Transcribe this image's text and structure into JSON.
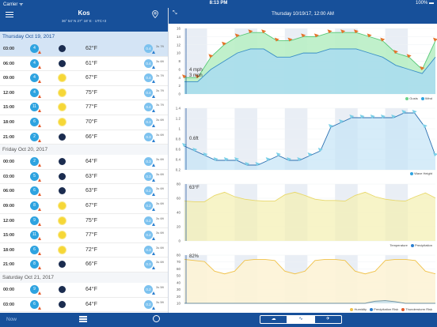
{
  "status": {
    "carrier": "Carrier ᯤ",
    "time": "8:13 PM",
    "battery": "100% ▬"
  },
  "location": {
    "name": "Kos",
    "coords": "36° 54' N 27° 18' E · UTC+3"
  },
  "chart_header": {
    "title": "Thursday 10/19/17, 12:00 AM"
  },
  "days": [
    {
      "label": "Thursday Oct 19, 2017",
      "selected": true,
      "rows": [
        {
          "time": "03:00",
          "wind": "4",
          "icon": "moon",
          "temp": "62°F",
          "wave": "0.4",
          "period": "3s 7ft",
          "selected": true
        },
        {
          "time": "06:00",
          "wind": "4",
          "icon": "moon",
          "temp": "61°F",
          "wave": "0.4",
          "period": "3s 6ft"
        },
        {
          "time": "09:00",
          "wind": "4",
          "icon": "sun",
          "temp": "67°F",
          "wave": "0.4",
          "period": "3s 7ft"
        },
        {
          "time": "12:00",
          "wind": "4",
          "icon": "sun",
          "temp": "75°F",
          "wave": "0.4",
          "period": "3s 7ft"
        },
        {
          "time": "15:00",
          "wind": "11",
          "icon": "sun",
          "temp": "77°F",
          "wave": "0.4",
          "period": "3s 7ft"
        },
        {
          "time": "18:00",
          "wind": "6",
          "icon": "sun",
          "temp": "70°F",
          "wave": "0.3",
          "period": "3s 6ft"
        },
        {
          "time": "21:00",
          "wind": "2",
          "icon": "moon",
          "temp": "66°F",
          "wave": "0.3",
          "period": "3s 6ft"
        }
      ]
    },
    {
      "label": "Friday Oct 20, 2017",
      "rows": [
        {
          "time": "00:00",
          "wind": "2",
          "icon": "moon",
          "temp": "64°F",
          "wave": "0.3",
          "period": "3s 6ft"
        },
        {
          "time": "03:00",
          "wind": "5",
          "icon": "moon",
          "temp": "63°F",
          "wave": "0.3",
          "period": "3s 6ft"
        },
        {
          "time": "06:00",
          "wind": "6",
          "icon": "moon",
          "temp": "63°F",
          "wave": "0.2",
          "period": "3s 6ft"
        },
        {
          "time": "09:00",
          "wind": "8",
          "icon": "sun",
          "temp": "67°F",
          "wave": "0.2",
          "period": "3s 6ft"
        },
        {
          "time": "12:00",
          "wind": "9",
          "icon": "sun",
          "temp": "75°F",
          "wave": "0.2",
          "period": "3s 6ft"
        },
        {
          "time": "15:00",
          "wind": "11",
          "icon": "sun",
          "temp": "77°F",
          "wave": "0.2",
          "period": "3s 6ft"
        },
        {
          "time": "18:00",
          "wind": "6",
          "icon": "sun",
          "temp": "72°F",
          "wave": "0.3",
          "period": "3s 6ft"
        },
        {
          "time": "21:00",
          "wind": "8",
          "icon": "moon",
          "temp": "66°F",
          "wave": "0.3",
          "period": "3s 6ft"
        }
      ]
    },
    {
      "label": "Saturday Oct 21, 2017",
      "rows": [
        {
          "time": "00:00",
          "wind": "9",
          "icon": "moon",
          "temp": "64°F",
          "wave": "0.2",
          "period": "3s 5ft"
        },
        {
          "time": "03:00",
          "wind": "6",
          "icon": "moon",
          "temp": "64°F",
          "wave": "0.2",
          "period": "3s 5ft"
        },
        {
          "time": "06:00",
          "wind": "6",
          "icon": "moon",
          "temp": "63°F",
          "wave": "0.2",
          "period": "3s 5ft"
        }
      ]
    }
  ],
  "charts": {
    "wind": {
      "label1": "4 mph",
      "label2": "3 mph",
      "ticks": [
        "16",
        "14",
        "12",
        "10",
        "8",
        "6",
        "4",
        "2",
        "0"
      ],
      "legend": [
        "Gusts",
        "Wind"
      ]
    },
    "wave": {
      "label": "0.6ft",
      "ticks": [
        "1.4",
        "1.2",
        "1",
        "0.8",
        "0.6",
        "0.4",
        "0.2"
      ],
      "legend": [
        "Wave Height"
      ]
    },
    "temp": {
      "label": "63°F",
      "ticks": [
        "80",
        "60",
        "40",
        "20",
        "0"
      ],
      "legend": [
        "Temperature",
        "Precipitation"
      ]
    },
    "humidity": {
      "label": "82%",
      "ticks": [
        "80",
        "70",
        "60",
        "50",
        "40",
        "30",
        "20",
        "10"
      ],
      "legend": [
        "Humidity",
        "Precipitation Risk",
        "Thunderstorm Risk"
      ]
    }
  },
  "chart_data": [
    {
      "type": "area",
      "title": "",
      "series": [
        {
          "name": "Gusts",
          "values": [
            4,
            4,
            9,
            12,
            14,
            15,
            15,
            13,
            13,
            14,
            14,
            15,
            15,
            15,
            14,
            13,
            10,
            9,
            6,
            13
          ]
        },
        {
          "name": "Wind",
          "values": [
            3,
            3,
            6,
            8,
            10,
            11,
            11,
            9,
            9,
            10,
            10,
            11,
            11,
            11,
            10,
            9,
            7,
            6,
            5,
            9
          ]
        }
      ],
      "ylim": [
        0,
        16
      ]
    },
    {
      "type": "area",
      "title": "",
      "series": [
        {
          "name": "Wave Height",
          "values": [
            0.6,
            0.5,
            0.4,
            0.3,
            0.3,
            0.3,
            0.2,
            0.2,
            0.3,
            0.4,
            0.3,
            0.3,
            0.4,
            0.5,
            1.0,
            1.1,
            1.2,
            1.2,
            1.2,
            1.2,
            1.2,
            1.3,
            1.3,
            1.0,
            0.4
          ]
        }
      ],
      "ylim": [
        0.1,
        1.4
      ]
    },
    {
      "type": "area",
      "title": "",
      "series": [
        {
          "name": "Temperature",
          "values": [
            63,
            62,
            62,
            72,
            77,
            70,
            66,
            64,
            63,
            63,
            73,
            77,
            72,
            66,
            64,
            64,
            63,
            72,
            77,
            70,
            66,
            64,
            63,
            70,
            76,
            68
          ]
        }
      ],
      "ylim": [
        0,
        90
      ]
    },
    {
      "type": "area",
      "title": "",
      "series": [
        {
          "name": "Humidity",
          "values": [
            82,
            80,
            78,
            60,
            55,
            60,
            80,
            82,
            82,
            80,
            60,
            55,
            60,
            80,
            82,
            82,
            80,
            60,
            55,
            60,
            80,
            82,
            82,
            80,
            60,
            55
          ]
        },
        {
          "name": "Precipitation Risk",
          "values": [
            0,
            0,
            0,
            0,
            0,
            0,
            0,
            0,
            0,
            0,
            0,
            0,
            0,
            0,
            0,
            0,
            0,
            0,
            0,
            4,
            5,
            3,
            0,
            0,
            0,
            0
          ]
        }
      ],
      "ylim": [
        0,
        90
      ]
    }
  ],
  "bottom": {
    "now_label": "Now",
    "seg": [
      "☁",
      "∿",
      "✈"
    ]
  },
  "colors": {
    "brand": "#17509a",
    "accent": "#2ea3e0",
    "gust": "#6dd48a",
    "wind_arrow": "#e55b2b"
  }
}
